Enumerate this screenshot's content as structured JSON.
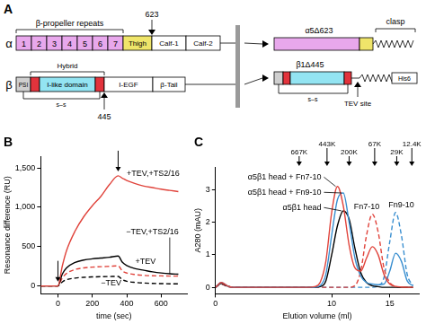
{
  "panel_labels": [
    "A",
    "B",
    "C"
  ],
  "diagram": {
    "alpha": {
      "symbol": "α",
      "propeller": [
        "1",
        "2",
        "3",
        "4",
        "5",
        "6",
        "7"
      ],
      "propeller_title": "β-propeller repeats",
      "domains": [
        "Thigh",
        "Calf-1",
        "Calf-2"
      ],
      "cut": "623"
    },
    "beta": {
      "symbol": "β",
      "domains": [
        "PSI",
        "I-like domain",
        "I-EGF",
        "β-Tail"
      ],
      "hybrid": "Hybrid",
      "disulfide": "s–s",
      "cut": "445"
    },
    "constructs": {
      "alpha": "α5Δ623",
      "beta": "β1Δ445",
      "clasp": "clasp",
      "tev": "TEV site",
      "tag": "His6",
      "disulfide": "s–s"
    }
  },
  "chart_data": [
    {
      "type": "line",
      "x_label": "time (sec)",
      "y_label": "Resonance difference (RU)",
      "x": [
        -100,
        -50,
        0,
        25,
        50,
        100,
        150,
        200,
        250,
        300,
        350,
        375,
        400,
        450,
        500,
        550,
        600,
        650,
        700
      ],
      "xlim": [
        -100,
        750
      ],
      "xticks": [
        0,
        200,
        400,
        600
      ],
      "ylim": [
        -100,
        1650
      ],
      "yticks": [
        0,
        500,
        {
          "value": 1000,
          "label": "1,000"
        },
        {
          "value": 1500,
          "label": "1,500"
        }
      ],
      "grid": false,
      "injection_arrows": [
        0,
        350
      ],
      "series": [
        {
          "name": "+TEV,+TS2/16",
          "color": "#e0433b",
          "line_style": "solid",
          "values": [
            0,
            0,
            0,
            250,
            450,
            700,
            880,
            1020,
            1140,
            1290,
            1400,
            1370,
            1340,
            1300,
            1270,
            1250,
            1230,
            1215,
            1200
          ]
        },
        {
          "name": "+TEV",
          "color": "#000000",
          "line_style": "solid",
          "values": [
            0,
            0,
            0,
            150,
            230,
            300,
            330,
            345,
            355,
            365,
            380,
            300,
            260,
            220,
            200,
            180,
            165,
            155,
            150
          ]
        },
        {
          "name": "−TEV,+TS2/16",
          "color": "#e0433b",
          "line_style": "dashed",
          "values": [
            0,
            0,
            0,
            100,
            160,
            210,
            230,
            240,
            245,
            250,
            255,
            190,
            165,
            145,
            135,
            130,
            128,
            126,
            125
          ]
        },
        {
          "name": "−TEV",
          "color": "#000000",
          "line_style": "dashed",
          "values": [
            0,
            0,
            0,
            50,
            80,
            100,
            110,
            115,
            118,
            120,
            122,
            80,
            60,
            45,
            38,
            33,
            30,
            28,
            27
          ]
        }
      ]
    },
    {
      "type": "line",
      "x_label": "Elution volume (ml)",
      "y_label": "A280 (mAU)",
      "x": [
        0,
        0.5,
        1,
        1.5,
        2,
        2.5,
        3,
        3.5,
        4,
        4.5,
        5,
        5.5,
        6,
        6.5,
        7,
        7.5,
        8,
        8.5,
        9,
        9.5,
        10,
        10.5,
        11,
        11.5,
        12,
        12.5,
        13,
        13.5,
        14,
        14.5,
        15,
        15.5,
        16,
        16.5,
        17
      ],
      "xlim": [
        0,
        17.5
      ],
      "xticks": [
        0,
        10,
        15
      ],
      "ylim": [
        -0.2,
        3.7
      ],
      "yticks": [
        0,
        1,
        2,
        3
      ],
      "grid": false,
      "mw_markers": [
        {
          "value": 7.2,
          "label": "667K"
        },
        {
          "value": 9.6,
          "label": "443K"
        },
        {
          "value": 11.5,
          "label": "200K"
        },
        {
          "value": 13.7,
          "label": "67K"
        },
        {
          "value": 15.6,
          "label": "29K"
        },
        {
          "value": 16.9,
          "label": "12.4K"
        }
      ],
      "series": [
        {
          "name": "α5β1 head + Fn7-10",
          "color": "#e0433b",
          "line_style": "solid",
          "values": [
            0,
            0.15,
            0.05,
            0,
            0,
            0,
            0,
            0,
            0,
            0,
            0,
            0,
            0,
            0,
            0,
            0,
            0,
            0.02,
            0.15,
            0.8,
            2.3,
            3.1,
            2.5,
            1.3,
            0.6,
            0.5,
            0.9,
            1.25,
            1.0,
            0.4,
            0.1,
            0.03,
            0.01,
            0,
            0
          ]
        },
        {
          "name": "α5β1 head + Fn9-10",
          "color": "#3a8fd0",
          "line_style": "solid",
          "values": [
            0,
            0.15,
            0.05,
            0,
            0,
            0,
            0,
            0,
            0,
            0,
            0,
            0,
            0,
            0,
            0,
            0,
            0,
            0,
            0.05,
            0.4,
            1.6,
            2.7,
            2.9,
            2.0,
            0.9,
            0.35,
            0.15,
            0.1,
            0.08,
            0.1,
            0.5,
            1.05,
            0.8,
            0.2,
            0.05
          ]
        },
        {
          "name": "α5β1 head",
          "color": "#000000",
          "line_style": "solid",
          "values": [
            0,
            0.12,
            0.04,
            0,
            0,
            0,
            0,
            0,
            0,
            0,
            0,
            0,
            0,
            0,
            0,
            0,
            0,
            0,
            0.02,
            0.2,
            1.0,
            1.9,
            2.35,
            2.1,
            1.2,
            0.45,
            0.15,
            0.05,
            0.02,
            0,
            0,
            0,
            0,
            0,
            0
          ]
        },
        {
          "name": "Fn7-10",
          "color": "#e0433b",
          "line_style": "dashed",
          "values": [
            0,
            0.1,
            0.03,
            0,
            0,
            0,
            0,
            0,
            0,
            0,
            0,
            0,
            0,
            0,
            0,
            0,
            0,
            0,
            0,
            0,
            0,
            0,
            0,
            0,
            0.05,
            0.5,
            1.6,
            2.25,
            1.7,
            0.6,
            0.15,
            0.03,
            0,
            0,
            0
          ]
        },
        {
          "name": "Fn9-10",
          "color": "#3a8fd0",
          "line_style": "dashed",
          "values": [
            0,
            0.1,
            0.03,
            0,
            0,
            0,
            0,
            0,
            0,
            0,
            0,
            0,
            0,
            0,
            0,
            0,
            0,
            0,
            0,
            0,
            0,
            0,
            0,
            0,
            0,
            0,
            0,
            0,
            0.05,
            0.3,
            1.4,
            2.3,
            1.6,
            0.4,
            0.05
          ]
        }
      ]
    }
  ]
}
